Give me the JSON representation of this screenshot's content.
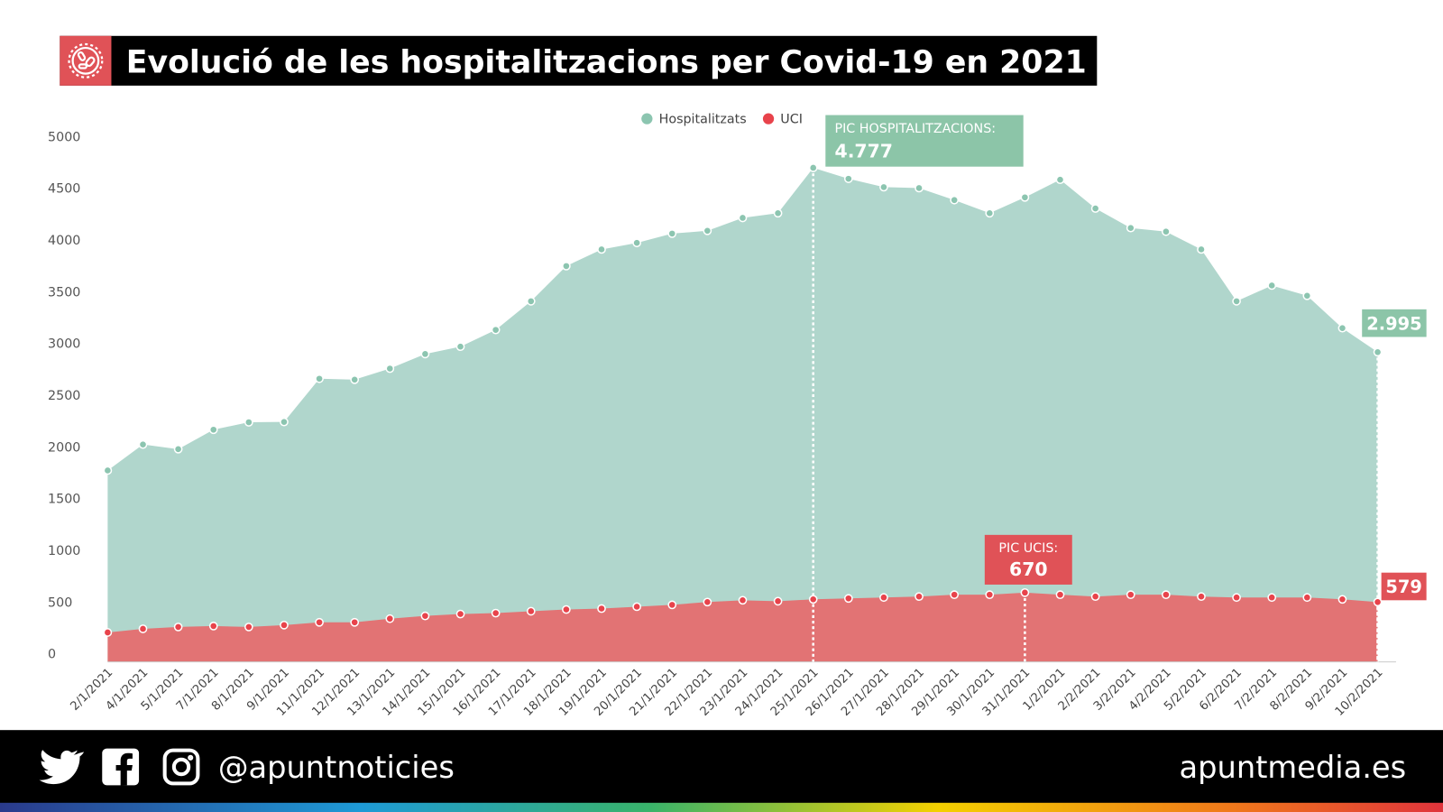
{
  "header": {
    "title": "Evolució de les hospitalitzacions per Covid-19 en 2021",
    "icon": "virus-icon",
    "accent": "#e05257"
  },
  "chart_data": {
    "type": "area",
    "title": "Evolució de les hospitalitzacions per Covid-19 en 2021",
    "legend_placement": "top-center",
    "ylim": [
      0,
      5000
    ],
    "yticks": [
      0,
      500,
      1000,
      1500,
      2000,
      2500,
      3000,
      3500,
      4000,
      4500,
      5000
    ],
    "grid": false,
    "categories": [
      "2/1/2021",
      "4/1/2021",
      "5/1/2021",
      "7/1/2021",
      "8/1/2021",
      "9/1/2021",
      "11/1/2021",
      "12/1/2021",
      "13/1/2021",
      "14/1/2021",
      "15/1/2021",
      "16/1/2021",
      "17/1/2021",
      "18/1/2021",
      "19/1/2021",
      "20/1/2021",
      "21/1/2021",
      "22/1/2021",
      "23/1/2021",
      "24/1/2021",
      "25/1/2021",
      "26/1/2021",
      "27/1/2021",
      "28/1/2021",
      "29/1/2021",
      "30/1/2021",
      "31/1/2021",
      "1/2/2021",
      "2/2/2021",
      "3/2/2021",
      "4/2/2021",
      "5/2/2021",
      "6/2/2021",
      "7/2/2021",
      "8/2/2021",
      "9/2/2021",
      "10/2/2021"
    ],
    "series": [
      {
        "name": "Hospitalitzats",
        "color": "#8cc5b0",
        "fill": "#b0d6cc",
        "values": [
          1851,
          2102,
          2057,
          2245,
          2317,
          2320,
          2738,
          2729,
          2836,
          2977,
          3048,
          3210,
          3487,
          3827,
          3988,
          4051,
          4141,
          4168,
          4293,
          4338,
          4777,
          4671,
          4590,
          4581,
          4465,
          4338,
          4491,
          4662,
          4384,
          4195,
          4160,
          3988,
          3487,
          3639,
          3540,
          3227,
          2995
        ]
      },
      {
        "name": "UCI",
        "color": "#e8434b",
        "fill": "#e27374",
        "values": [
          285,
          320,
          338,
          347,
          338,
          356,
          383,
          383,
          418,
          445,
          463,
          472,
          490,
          507,
          516,
          534,
          552,
          579,
          596,
          587,
          605,
          614,
          623,
          632,
          650,
          650,
          670,
          650,
          632,
          650,
          650,
          632,
          623,
          623,
          623,
          605,
          579
        ]
      }
    ],
    "annotations": [
      {
        "label": "PIC HOSPITALITZACIONS:",
        "value": "4.777",
        "category": "25/1/2021",
        "color": "#8cc5a8"
      },
      {
        "label": "PIC UCIS:",
        "value": "670",
        "category": "31/1/2021",
        "color": "#e05257"
      },
      {
        "label": "",
        "value": "2.995",
        "category": "10/2/2021",
        "color": "#8cc5a8"
      },
      {
        "label": "",
        "value": "579",
        "category": "10/2/2021",
        "color": "#e05257"
      }
    ]
  },
  "footer": {
    "handle": "@apuntnoticies",
    "site": "apuntmedia.es",
    "icons": [
      "twitter-icon",
      "facebook-icon",
      "instagram-icon"
    ]
  }
}
